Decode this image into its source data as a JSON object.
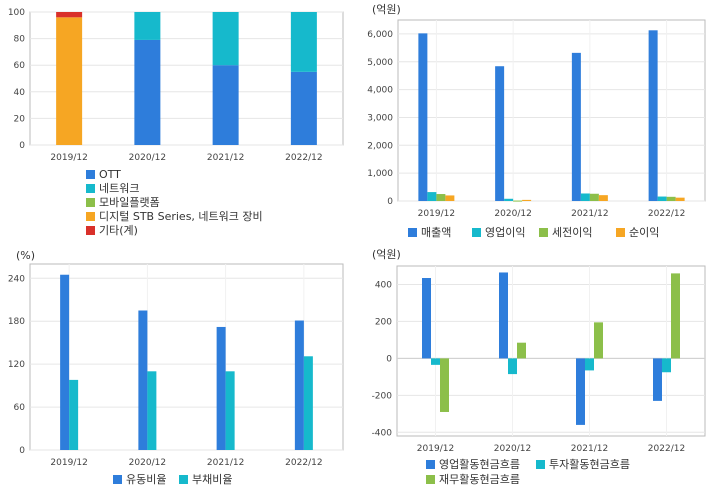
{
  "colors": {
    "blue": "#2e7ddb",
    "teal": "#16b9cc",
    "green": "#8cbf4a",
    "orange": "#f6a623",
    "red": "#d9302a",
    "grid": "#e6e6e6",
    "axis": "#bbbbbb"
  },
  "chart_data": [
    {
      "id": "chart1",
      "type": "bar",
      "stacked": true,
      "unit": "",
      "categories": [
        "2019/12",
        "2020/12",
        "2021/12",
        "2022/12"
      ],
      "series": [
        {
          "name": "OTT",
          "color": "#2e7ddb",
          "values": [
            0,
            79,
            60,
            55
          ]
        },
        {
          "name": "네트워크",
          "color": "#16b9cc",
          "values": [
            0,
            21,
            40,
            45
          ]
        },
        {
          "name": "모바일플랫폼",
          "color": "#8cbf4a",
          "values": [
            0,
            0,
            0,
            0
          ]
        },
        {
          "name": "디지털 STB Series, 네트워크 장비",
          "color": "#f6a623",
          "values": [
            96,
            0,
            0,
            0
          ]
        },
        {
          "name": "기타(계)",
          "color": "#d9302a",
          "values": [
            4,
            0,
            0,
            0
          ]
        }
      ],
      "yticks": [
        "0",
        "20",
        "40",
        "60",
        "80",
        "100"
      ],
      "ylim": [
        0,
        100
      ],
      "legend_position": "bottom",
      "grid": true
    },
    {
      "id": "chart2",
      "type": "bar",
      "unit": "(억원)",
      "categories": [
        "2019/12",
        "2020/12",
        "2021/12",
        "2022/12"
      ],
      "series": [
        {
          "name": "매출액",
          "color": "#2e7ddb",
          "values": [
            6020,
            4840,
            5320,
            6130
          ]
        },
        {
          "name": "영업이익",
          "color": "#16b9cc",
          "values": [
            320,
            80,
            270,
            160
          ]
        },
        {
          "name": "세전이익",
          "color": "#8cbf4a",
          "values": [
            250,
            15,
            260,
            150
          ]
        },
        {
          "name": "순이익",
          "color": "#f6a623",
          "values": [
            200,
            40,
            210,
            120
          ]
        }
      ],
      "yticks": [
        "0",
        "1,000",
        "2,000",
        "3,000",
        "4,000",
        "5,000",
        "6,000"
      ],
      "ylim": [
        0,
        6500
      ],
      "legend_position": "bottom",
      "grid": true
    },
    {
      "id": "chart3",
      "type": "bar",
      "unit": "(%)",
      "categories": [
        "2019/12",
        "2020/12",
        "2021/12",
        "2022/12"
      ],
      "series": [
        {
          "name": "유동비율",
          "color": "#2e7ddb",
          "values": [
            245,
            195,
            172,
            181
          ]
        },
        {
          "name": "부채비율",
          "color": "#16b9cc",
          "values": [
            98,
            110,
            110,
            131
          ]
        }
      ],
      "yticks": [
        "0",
        "60",
        "120",
        "180",
        "240"
      ],
      "ylim": [
        0,
        260
      ],
      "legend_position": "bottom",
      "grid": true
    },
    {
      "id": "chart4",
      "type": "bar",
      "unit": "(억원)",
      "categories": [
        "2019/12",
        "2020/12",
        "2021/12",
        "2022/12"
      ],
      "series": [
        {
          "name": "영업활동현금흐름",
          "color": "#2e7ddb",
          "values": [
            435,
            465,
            -360,
            -230
          ]
        },
        {
          "name": "투자활동현금흐름",
          "color": "#16b9cc",
          "values": [
            -35,
            -85,
            -65,
            -75
          ]
        },
        {
          "name": "재무활동현금흐름",
          "color": "#8cbf4a",
          "values": [
            -290,
            85,
            195,
            460
          ]
        }
      ],
      "yticks": [
        "-400",
        "-200",
        "0",
        "200",
        "400"
      ],
      "ylim": [
        -420,
        500
      ],
      "legend_position": "bottom",
      "grid": true
    }
  ]
}
